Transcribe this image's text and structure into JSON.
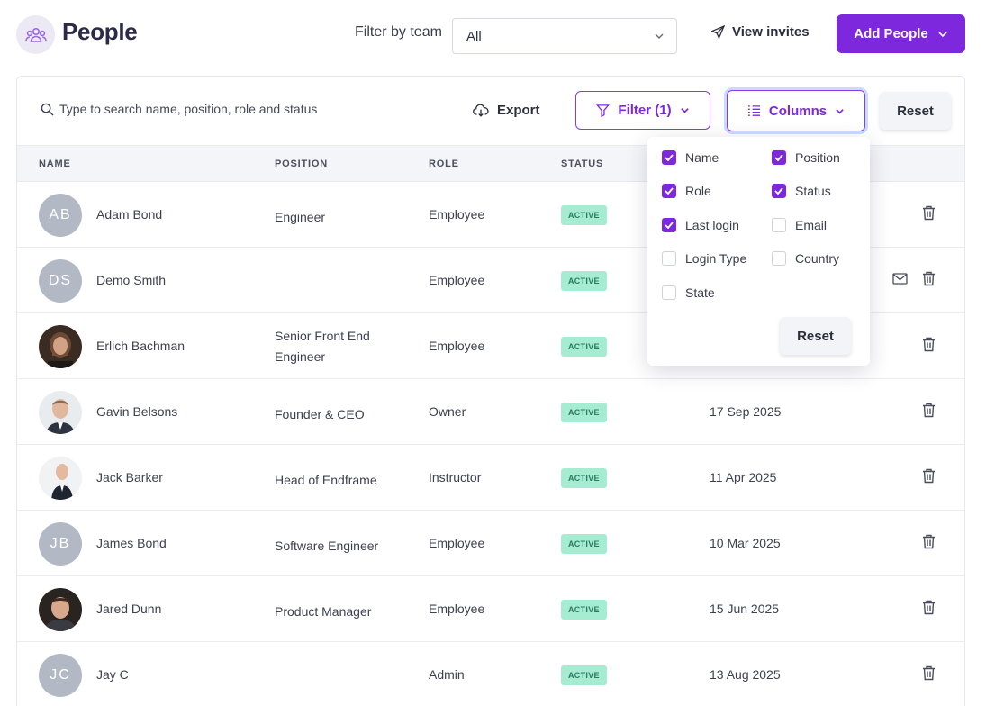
{
  "header": {
    "title": "People",
    "filter_label": "Filter by team",
    "team_select_value": "All",
    "view_invites": "View invites",
    "add_people": "Add People"
  },
  "toolbar": {
    "search_placeholder": "Type to search name, position, role and status",
    "export": "Export",
    "filter": "Filter (1)",
    "columns": "Columns",
    "reset": "Reset"
  },
  "table": {
    "headers": {
      "name": "NAME",
      "position": "POSITION",
      "role": "ROLE",
      "status": "STATUS"
    },
    "rows": [
      {
        "initials": "AB",
        "name": "Adam Bond",
        "position": "Engineer",
        "role": "Employee",
        "status": "ACTIVE",
        "last_login": ""
      },
      {
        "initials": "DS",
        "name": "Demo Smith",
        "position": "",
        "role": "Employee",
        "status": "ACTIVE",
        "last_login": ""
      },
      {
        "initials": "",
        "name": "Erlich Bachman",
        "position": "Senior Front End Engineer",
        "role": "Employee",
        "status": "ACTIVE",
        "last_login": ""
      },
      {
        "initials": "",
        "name": "Gavin Belsons",
        "position": "Founder & CEO",
        "role": "Owner",
        "status": "ACTIVE",
        "last_login": "17 Sep 2025"
      },
      {
        "initials": "",
        "name": "Jack Barker",
        "position": "Head of Endframe",
        "role": "Instructor",
        "status": "ACTIVE",
        "last_login": "11 Apr 2025"
      },
      {
        "initials": "JB",
        "name": "James Bond",
        "position": "Software Engineer",
        "role": "Employee",
        "status": "ACTIVE",
        "last_login": "10 Mar 2025"
      },
      {
        "initials": "",
        "name": "Jared Dunn",
        "position": "Product Manager",
        "role": "Employee",
        "status": "ACTIVE",
        "last_login": "15 Jun 2025"
      },
      {
        "initials": "JC",
        "name": "Jay C",
        "position": "",
        "role": "Admin",
        "status": "ACTIVE",
        "last_login": "13 Aug 2025"
      }
    ]
  },
  "columns_menu": {
    "options": [
      {
        "label": "Name",
        "checked": true
      },
      {
        "label": "Position",
        "checked": true
      },
      {
        "label": "Role",
        "checked": true
      },
      {
        "label": "Status",
        "checked": true
      },
      {
        "label": "Last login",
        "checked": true
      },
      {
        "label": "Email",
        "checked": false
      },
      {
        "label": "Login Type",
        "checked": false
      },
      {
        "label": "Country",
        "checked": false
      },
      {
        "label": "State",
        "checked": false
      }
    ],
    "reset": "Reset"
  },
  "colors": {
    "accent": "#7d28dd",
    "status_bg": "#a6ecd3",
    "avatar_gray": "#b3b9c4"
  }
}
